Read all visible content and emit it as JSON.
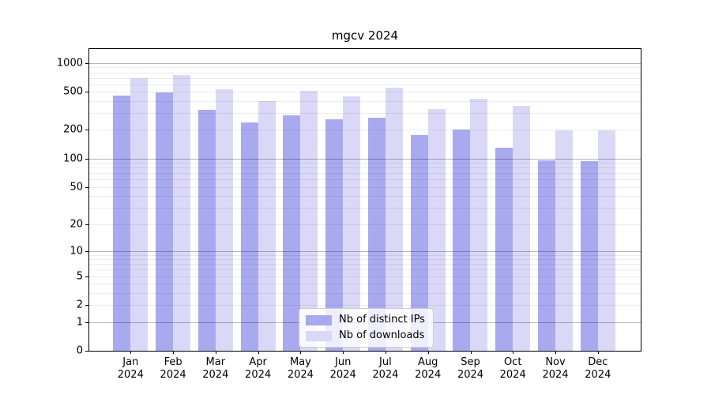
{
  "chart_data": {
    "type": "bar",
    "title": "mgcv 2024",
    "categories": [
      "Jan",
      "Feb",
      "Mar",
      "Apr",
      "May",
      "Jun",
      "Jul",
      "Aug",
      "Sep",
      "Oct",
      "Nov",
      "Dec"
    ],
    "year": "2024",
    "series": [
      {
        "name": "Nb of distinct IPs",
        "color": "#a9a9f0",
        "values": [
          455,
          490,
          325,
          240,
          285,
          260,
          270,
          175,
          200,
          130,
          95,
          94
        ]
      },
      {
        "name": "Nb of downloads",
        "color": "#d9d9f7",
        "values": [
          700,
          745,
          535,
          400,
          510,
          450,
          555,
          330,
          425,
          360,
          197,
          197
        ]
      }
    ],
    "xlabel": "",
    "ylabel": "",
    "yscale": "log1p",
    "ylim": [
      0,
      1400
    ],
    "yticks": [
      0,
      1,
      2,
      5,
      10,
      20,
      50,
      100,
      200,
      500,
      1000
    ],
    "grid": "horizontal log gridlines (minor 2-9 per decade, major at 1,10,100,1000) drawn over bars",
    "legend_position": "lower center"
  }
}
